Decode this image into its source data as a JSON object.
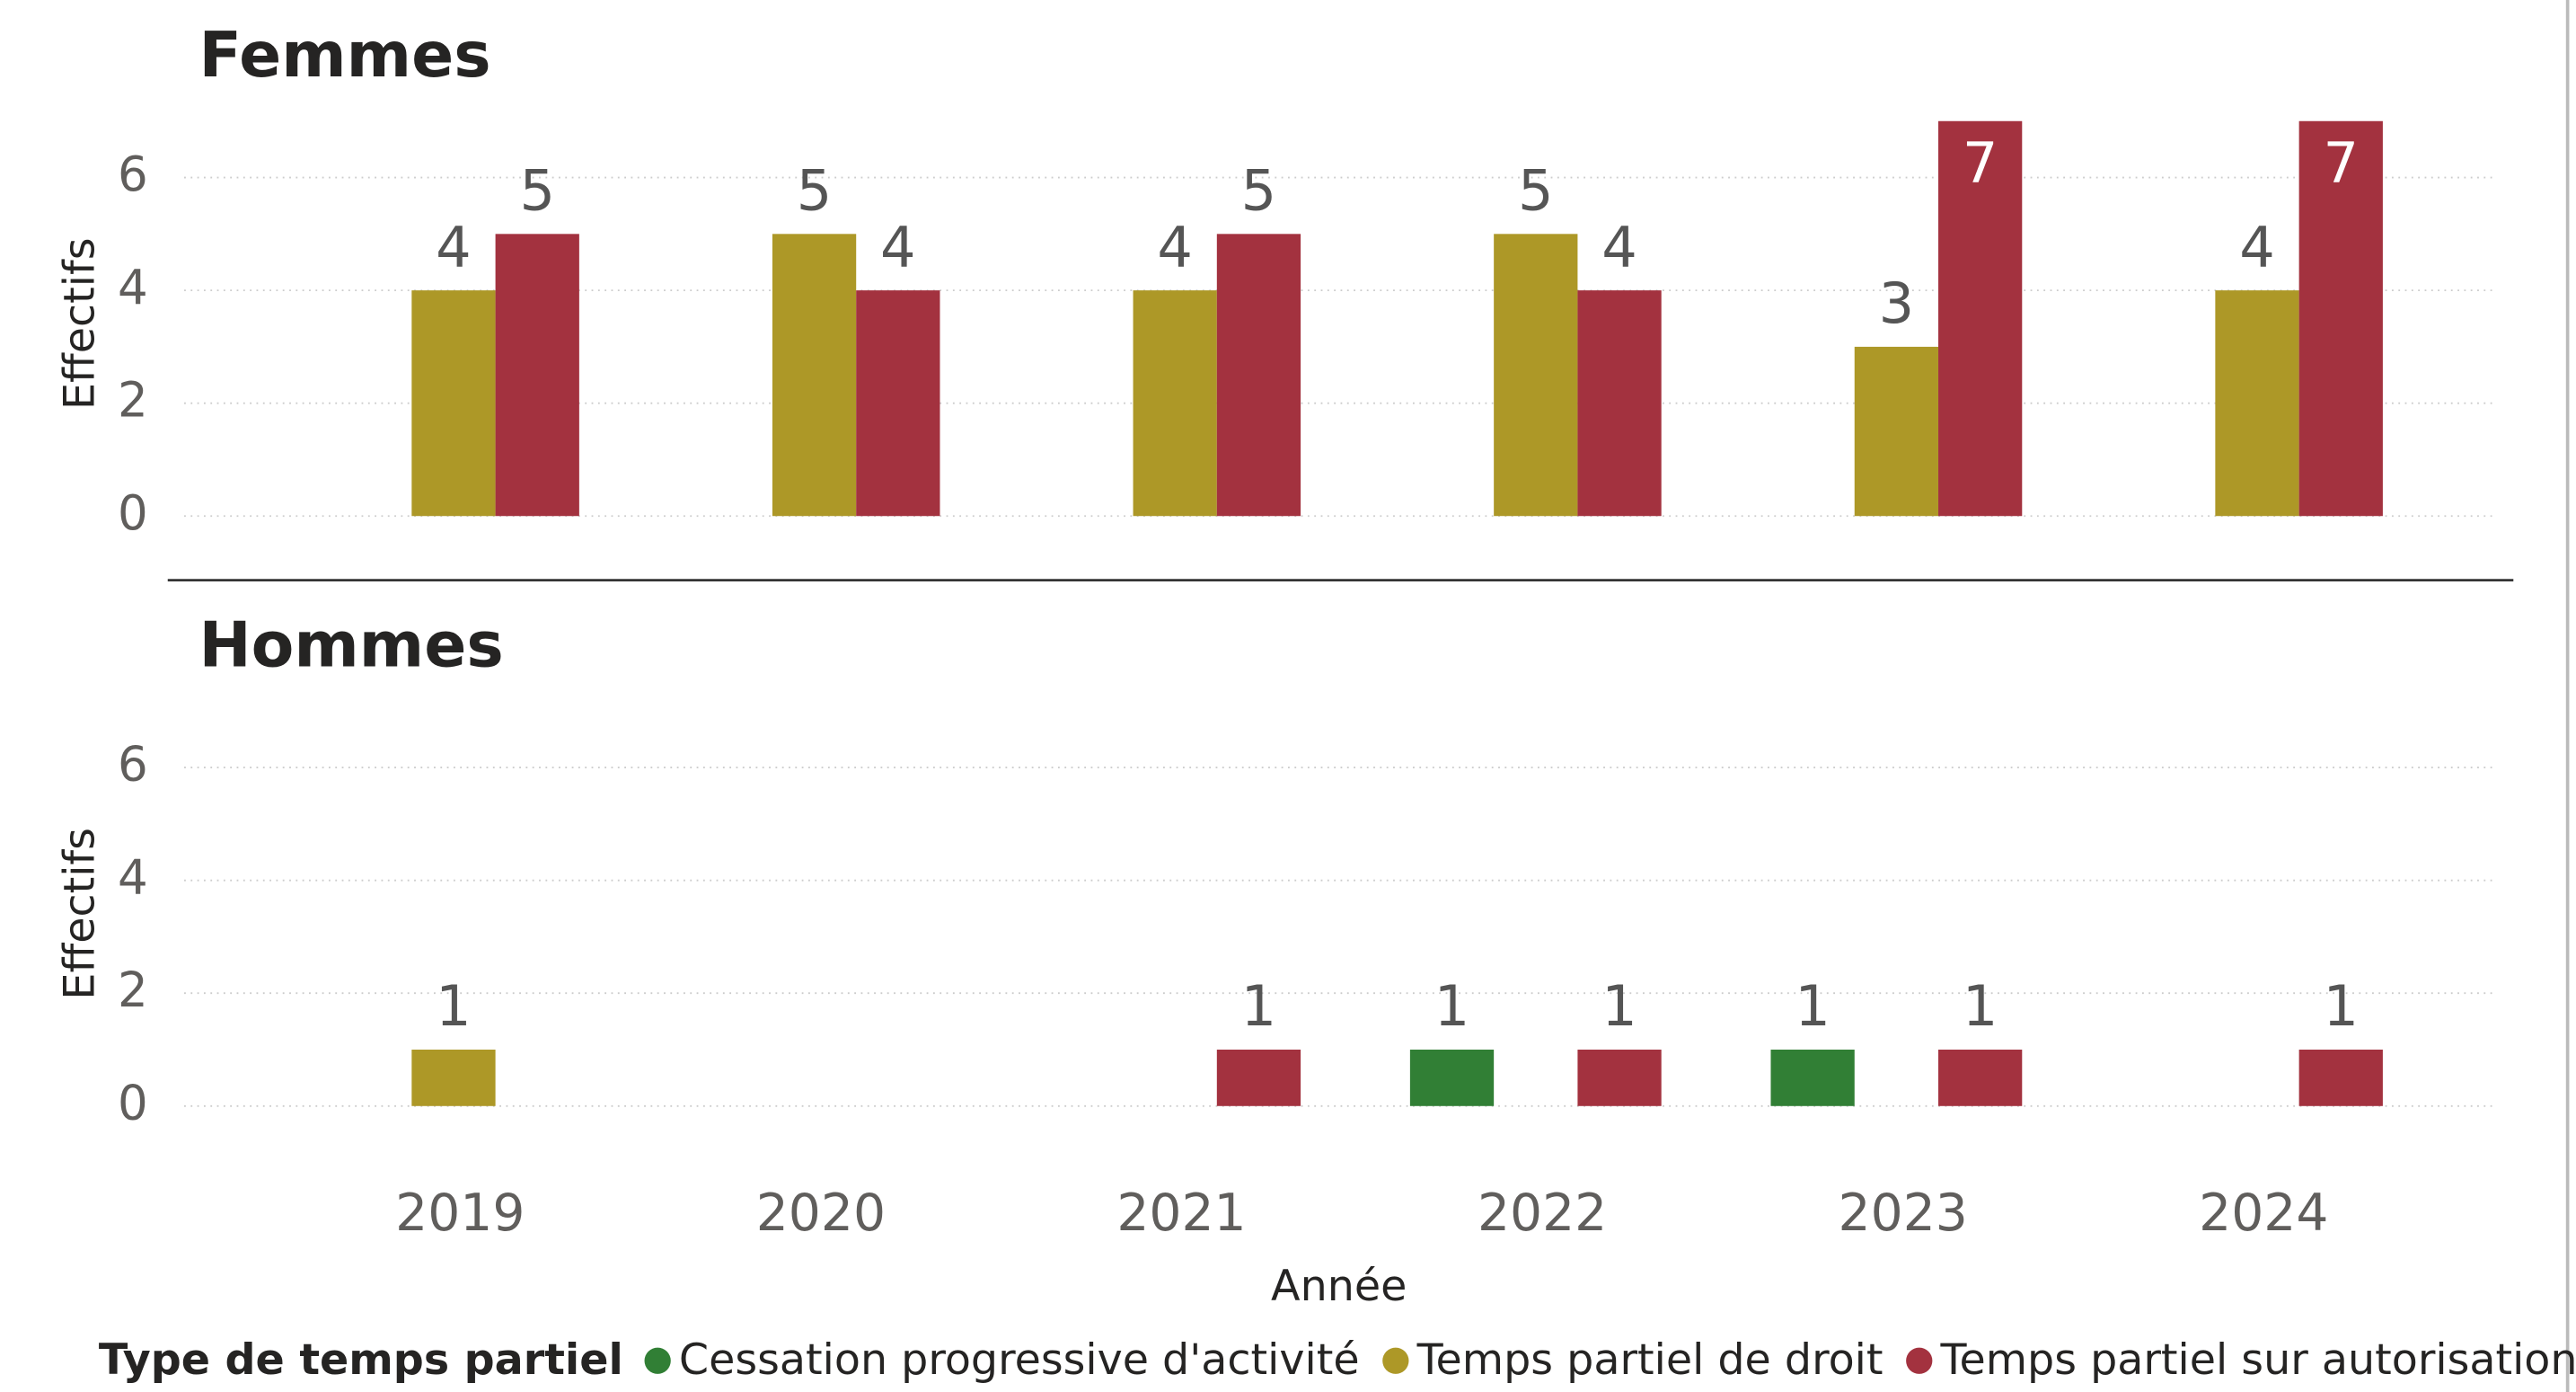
{
  "chart_data": [
    {
      "type": "bar",
      "title": "Femmes",
      "y_label": "Effectifs",
      "ylim": [
        0,
        7
      ],
      "yticks": [
        0,
        2,
        4,
        6
      ],
      "grid": true,
      "series": [
        {
          "name": "Cessation progressive d'activité",
          "color": "#317f35",
          "values": [
            null,
            null,
            null,
            null,
            null,
            null
          ]
        },
        {
          "name": "Temps partiel de droit",
          "color": "#ad9827",
          "values": [
            4,
            5,
            4,
            5,
            3,
            4
          ]
        },
        {
          "name": "Temps partiel sur autorisation",
          "color": "#a3323f",
          "values": [
            5,
            4,
            5,
            4,
            7,
            7
          ]
        }
      ]
    },
    {
      "type": "bar",
      "title": "Hommes",
      "y_label": "Effectifs",
      "x_label": "Année",
      "legend_title": "Type de temps partiel",
      "categories": [
        "2019",
        "2020",
        "2021",
        "2022",
        "2023",
        "2024"
      ],
      "ylim": [
        0,
        7
      ],
      "yticks": [
        0,
        2,
        4,
        6
      ],
      "grid": true,
      "series": [
        {
          "name": "Cessation progressive d'activité",
          "color": "#317f35",
          "values": [
            null,
            null,
            null,
            1,
            1,
            null
          ]
        },
        {
          "name": "Temps partiel de droit",
          "color": "#ad9827",
          "values": [
            1,
            null,
            null,
            null,
            null,
            null
          ]
        },
        {
          "name": "Temps partiel sur autorisation",
          "color": "#a3323f",
          "values": [
            null,
            null,
            1,
            1,
            1,
            1
          ]
        }
      ]
    }
  ]
}
